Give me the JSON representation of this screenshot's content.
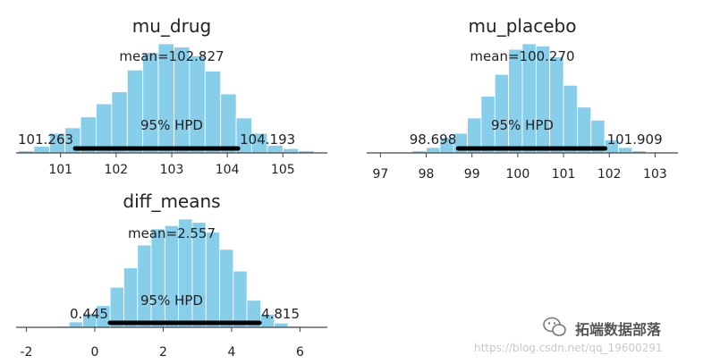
{
  "chart_data": [
    {
      "type": "histogram",
      "title": "mu_drug",
      "mean_label": "mean=102.827",
      "hpd_label": "95% HPD",
      "hpd_low_label": "101.263",
      "hpd_high_label": "104.193",
      "hpd": [
        101.263,
        104.193
      ],
      "xlim": [
        100.2,
        105.8
      ],
      "xticks": [
        101,
        102,
        103,
        104,
        105
      ],
      "bins": [
        [
          100.38,
          0.02
        ],
        [
          100.66,
          0.06
        ],
        [
          100.94,
          0.18
        ],
        [
          101.22,
          0.23
        ],
        [
          101.5,
          0.33
        ],
        [
          101.78,
          0.45
        ],
        [
          102.06,
          0.56
        ],
        [
          102.34,
          0.76
        ],
        [
          102.62,
          0.92
        ],
        [
          102.9,
          1.0
        ],
        [
          103.18,
          0.97
        ],
        [
          103.46,
          0.89
        ],
        [
          103.74,
          0.75
        ],
        [
          104.02,
          0.54
        ],
        [
          104.3,
          0.32
        ],
        [
          104.58,
          0.18
        ],
        [
          104.86,
          0.07
        ],
        [
          105.14,
          0.04
        ],
        [
          105.42,
          0.02
        ]
      ],
      "bin_width": 0.28
    },
    {
      "type": "histogram",
      "title": "mu_placebo",
      "mean_label": "mean=100.270",
      "hpd_label": "95% HPD",
      "hpd_low_label": "98.698",
      "hpd_high_label": "101.909",
      "hpd": [
        98.698,
        101.909
      ],
      "xlim": [
        96.7,
        103.5
      ],
      "xticks": [
        97,
        98,
        99,
        100,
        101,
        102,
        103
      ],
      "bins": [
        [
          97.85,
          0.02
        ],
        [
          98.15,
          0.05
        ],
        [
          98.45,
          0.14
        ],
        [
          98.75,
          0.18
        ],
        [
          99.05,
          0.32
        ],
        [
          99.35,
          0.52
        ],
        [
          99.65,
          0.72
        ],
        [
          99.95,
          0.95
        ],
        [
          100.25,
          1.0
        ],
        [
          100.55,
          0.98
        ],
        [
          100.85,
          0.88
        ],
        [
          101.15,
          0.62
        ],
        [
          101.45,
          0.42
        ],
        [
          101.75,
          0.3
        ],
        [
          102.05,
          0.12
        ],
        [
          102.35,
          0.05
        ],
        [
          102.65,
          0.02
        ]
      ],
      "bin_width": 0.3
    },
    {
      "type": "histogram",
      "title": "diff_means",
      "mean_label": "mean=2.557",
      "hpd_label": "95% HPD",
      "hpd_low_label": "0.445",
      "hpd_high_label": "4.815",
      "hpd": [
        0.445,
        4.815
      ],
      "xlim": [
        -2.3,
        6.8
      ],
      "xticks": [
        -2,
        0,
        2,
        4,
        6
      ],
      "bins": [
        [
          -0.95,
          0.01
        ],
        [
          -0.55,
          0.05
        ],
        [
          -0.15,
          0.13
        ],
        [
          0.25,
          0.2
        ],
        [
          0.65,
          0.37
        ],
        [
          1.05,
          0.55
        ],
        [
          1.45,
          0.76
        ],
        [
          1.85,
          0.91
        ],
        [
          2.25,
          0.94
        ],
        [
          2.65,
          1.0
        ],
        [
          3.05,
          0.97
        ],
        [
          3.45,
          0.88
        ],
        [
          3.85,
          0.72
        ],
        [
          4.25,
          0.52
        ],
        [
          4.65,
          0.25
        ],
        [
          5.05,
          0.12
        ],
        [
          5.45,
          0.04
        ],
        [
          5.85,
          0.01
        ]
      ],
      "bin_width": 0.4
    }
  ],
  "colors": {
    "bar": "#87ceeb",
    "bar_edge": "#ffffff",
    "hpd_line": "#000000",
    "axis": "#444444"
  },
  "watermark": {
    "url_text": "https://blog.csdn.net/qq_19600291",
    "brand_text": "拓端数据部落",
    "icon": "wechat-icon"
  }
}
